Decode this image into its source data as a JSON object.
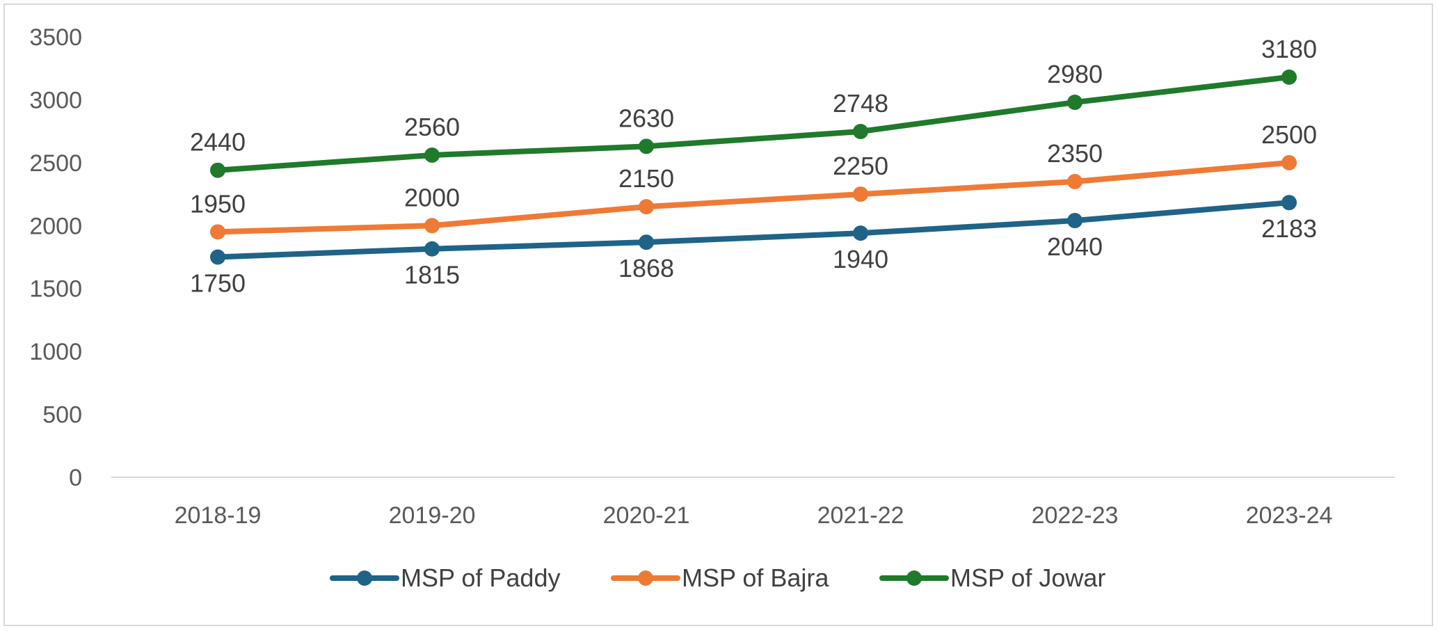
{
  "chart_data": {
    "type": "line",
    "title": "",
    "xlabel": "",
    "ylabel": "",
    "categories": [
      "2018-19",
      "2019-20",
      "2020-21",
      "2021-22",
      "2022-23",
      "2023-24"
    ],
    "ylim": [
      0,
      3500
    ],
    "yticks": [
      0,
      500,
      1000,
      1500,
      2000,
      2500,
      3000,
      3500
    ],
    "grid": false,
    "legend_position": "bottom",
    "series": [
      {
        "name": "MSP of Paddy",
        "color": "#1f6388",
        "values": [
          1750,
          1815,
          1868,
          1940,
          2040,
          2183
        ],
        "label_position": "below"
      },
      {
        "name": "MSP of Bajra",
        "color": "#ef7a35",
        "values": [
          1950,
          2000,
          2150,
          2250,
          2350,
          2500
        ],
        "label_position": "above"
      },
      {
        "name": "MSP of Jowar",
        "color": "#1f7a2b",
        "values": [
          2440,
          2560,
          2630,
          2748,
          2980,
          3180
        ],
        "label_position": "above"
      }
    ]
  }
}
